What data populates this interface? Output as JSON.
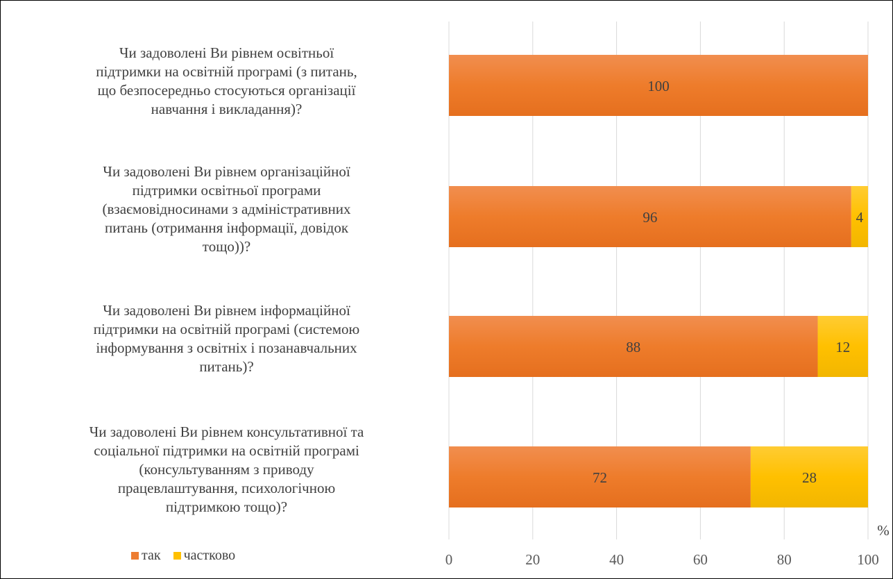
{
  "chart_data": {
    "type": "bar",
    "orientation": "horizontal",
    "stacked": true,
    "categories": [
      "Чи задоволені Ви рівнем освітньої\nпідтримки на освітній програмі (з питань,\nщо безпосередньо стосуються організації\nнавчання і викладання)?",
      "Чи задоволені Ви рівнем організаційної\nпідтримки освітньої програми\n(взаємовідносинами з адміністративних\nпитань (отримання інформації, довідок\nтощо))?",
      "Чи задоволені Ви рівнем інформаційної\nпідтримки на освітній програмі (системою\nінформування з освітніх і позанавчальних\nпитань)?",
      "Чи задоволені Ви рівнем консультативної та\nсоціальної підтримки на освітній програмі\n(консультуванням з приводу\nпрацевлаштування, психологічною\nпідтримкою тощо)?"
    ],
    "series": [
      {
        "name": "так",
        "values": [
          100,
          96,
          88,
          72
        ],
        "color": "#ED7D31"
      },
      {
        "name": "частково",
        "values": [
          0,
          4,
          12,
          28
        ],
        "color": "#FFC000"
      }
    ],
    "data_labels": [
      {
        "так": "100",
        "частково": ""
      },
      {
        "так": "96",
        "частково": "4"
      },
      {
        "так": "88",
        "частково": "12"
      },
      {
        "так": "72",
        "частково": "28"
      }
    ],
    "x_ticks": [
      "0",
      "20",
      "40",
      "60",
      "80",
      "100"
    ],
    "xlim": [
      0,
      100
    ],
    "xlabel": "%",
    "grid": true,
    "legend": "bottom-left"
  }
}
